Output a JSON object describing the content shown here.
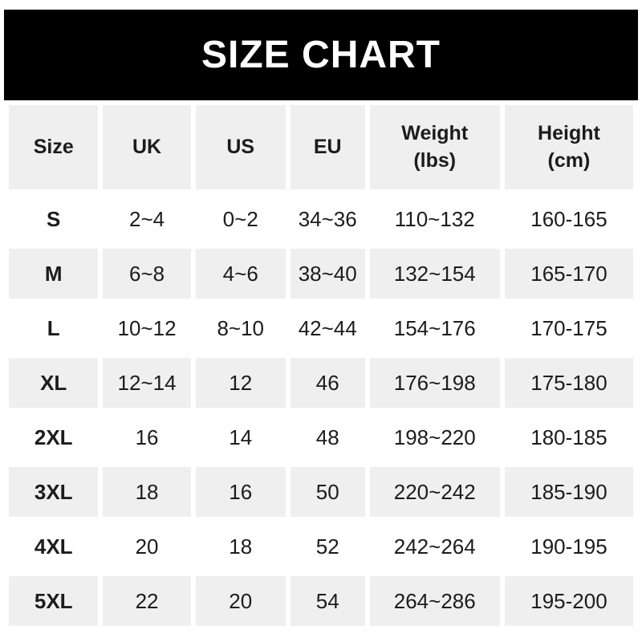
{
  "page": {
    "background_color": "#ffffff",
    "text_color": "#1c1c1c",
    "shaded_row_color": "#efefef"
  },
  "banner": {
    "title": "SIZE CHART",
    "background_color": "#000000",
    "text_color": "#ffffff"
  },
  "table": {
    "columns": [
      {
        "line1": "Size",
        "line2": ""
      },
      {
        "line1": "UK",
        "line2": ""
      },
      {
        "line1": "US",
        "line2": ""
      },
      {
        "line1": "EU",
        "line2": ""
      },
      {
        "line1": "Weight",
        "line2": "(lbs)"
      },
      {
        "line1": "Height",
        "line2": "(cm)"
      }
    ]
  },
  "chart_data": {
    "type": "table",
    "title": "SIZE CHART",
    "columns": [
      "Size",
      "UK",
      "US",
      "EU",
      "Weight (lbs)",
      "Height (cm)"
    ],
    "rows": [
      [
        "S",
        "2~4",
        "0~2",
        "34~36",
        "110~132",
        "160-165"
      ],
      [
        "M",
        "6~8",
        "4~6",
        "38~40",
        "132~154",
        "165-170"
      ],
      [
        "L",
        "10~12",
        "8~10",
        "42~44",
        "154~176",
        "170-175"
      ],
      [
        "XL",
        "12~14",
        "12",
        "46",
        "176~198",
        "175-180"
      ],
      [
        "2XL",
        "16",
        "14",
        "48",
        "198~220",
        "180-185"
      ],
      [
        "3XL",
        "18",
        "16",
        "50",
        "220~242",
        "185-190"
      ],
      [
        "4XL",
        "20",
        "18",
        "52",
        "242~264",
        "190-195"
      ],
      [
        "5XL",
        "22",
        "20",
        "54",
        "264~286",
        "195-200"
      ]
    ],
    "layout": {
      "shaded_rows": [
        "header",
        "M",
        "XL",
        "3XL",
        "5XL"
      ],
      "weight_range_separator": "~",
      "height_range_separator": "-"
    }
  }
}
